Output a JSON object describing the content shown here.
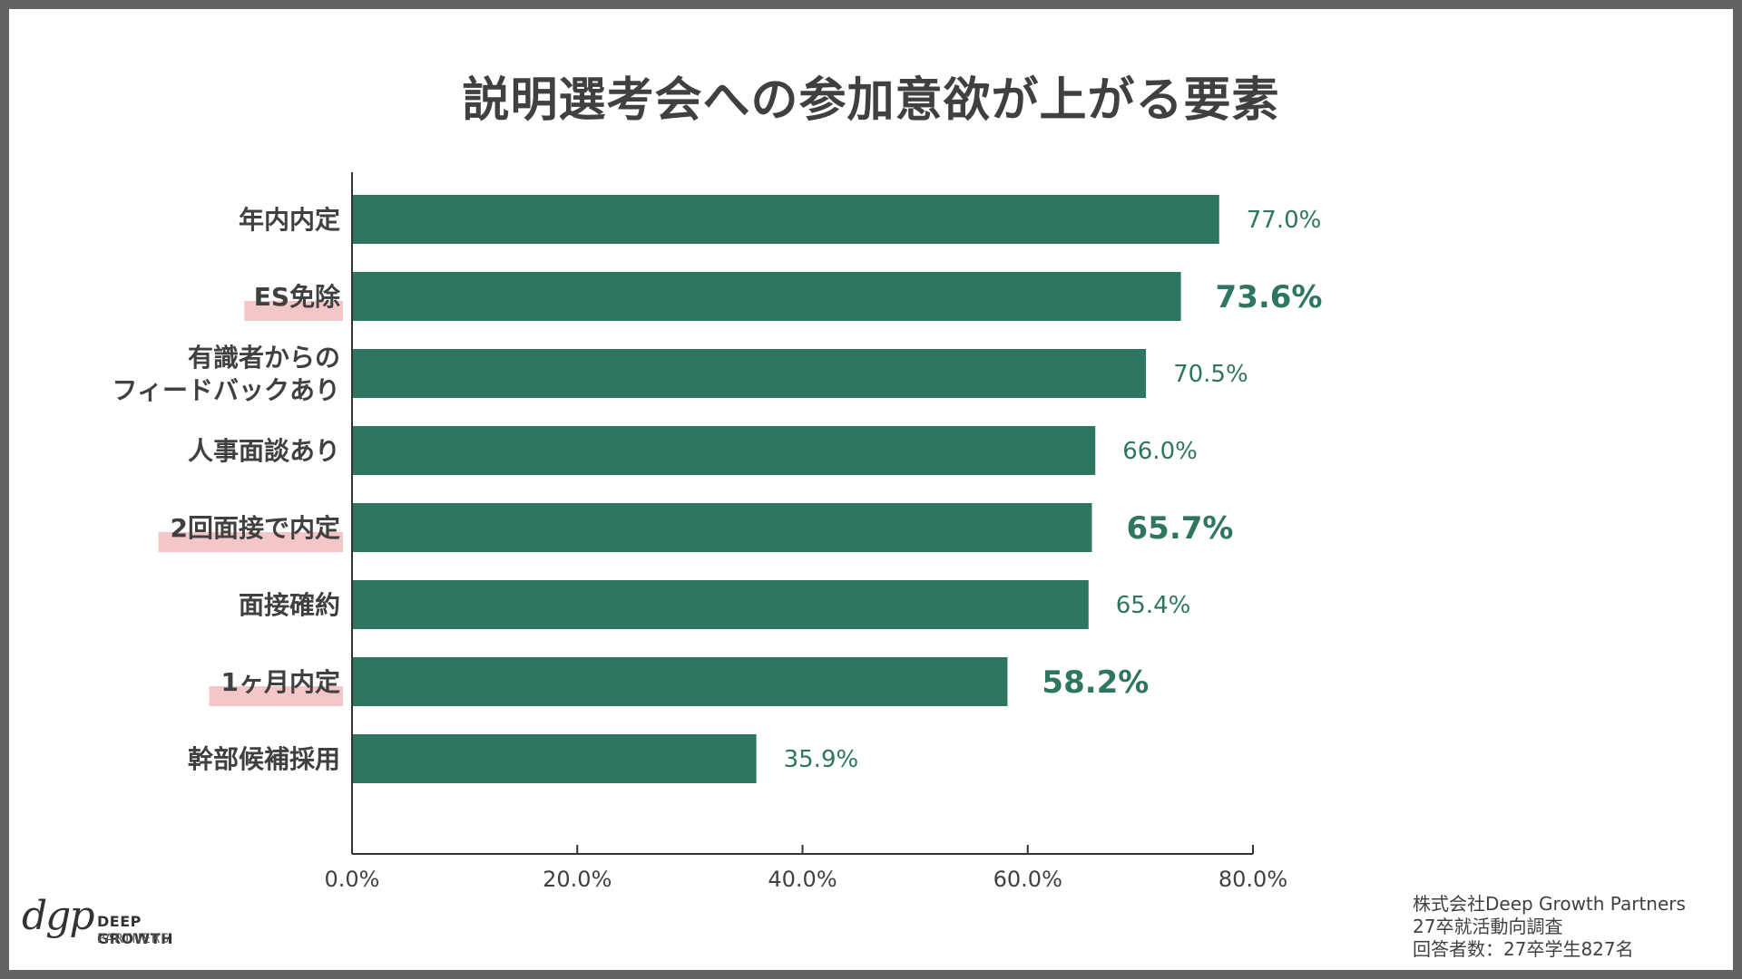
{
  "title": "説明選考会への参加意欲が上がる要素",
  "colors": {
    "bar": "#2e7562",
    "highlight": "#f3c7c7",
    "label_text": "#404040",
    "value_text": "#2e7562"
  },
  "chart_data": {
    "type": "bar",
    "orientation": "horizontal",
    "categories": [
      "年内内定",
      "ES免除",
      "有識者からの\nフィードバックあり",
      "人事面談あり",
      "2回面接で内定",
      "面接確約",
      "1ヶ月内定",
      "幹部候補採用"
    ],
    "values": [
      77.0,
      73.6,
      70.5,
      66.0,
      65.7,
      65.4,
      58.2,
      35.9
    ],
    "value_labels": [
      "77.0%",
      "73.6%",
      "70.5%",
      "66.0%",
      "65.7%",
      "65.4%",
      "58.2%",
      "35.9%"
    ],
    "emphasized": [
      false,
      true,
      false,
      false,
      true,
      false,
      true,
      false
    ],
    "xlim": [
      0,
      80
    ],
    "xticks": [
      0,
      20,
      40,
      60,
      80
    ],
    "xtick_labels": [
      "0.0%",
      "20.0%",
      "40.0%",
      "60.0%",
      "80.0%"
    ],
    "grid": false,
    "legend": "none"
  },
  "source": {
    "line1": "株式会社Deep Growth Partners",
    "line2": "27卒就活動向調査",
    "line3": "回答者数：27卒学生827名"
  },
  "logo": {
    "mark": "dgp",
    "name": "DEEP GROWTH",
    "sub": "PARTNERS"
  }
}
